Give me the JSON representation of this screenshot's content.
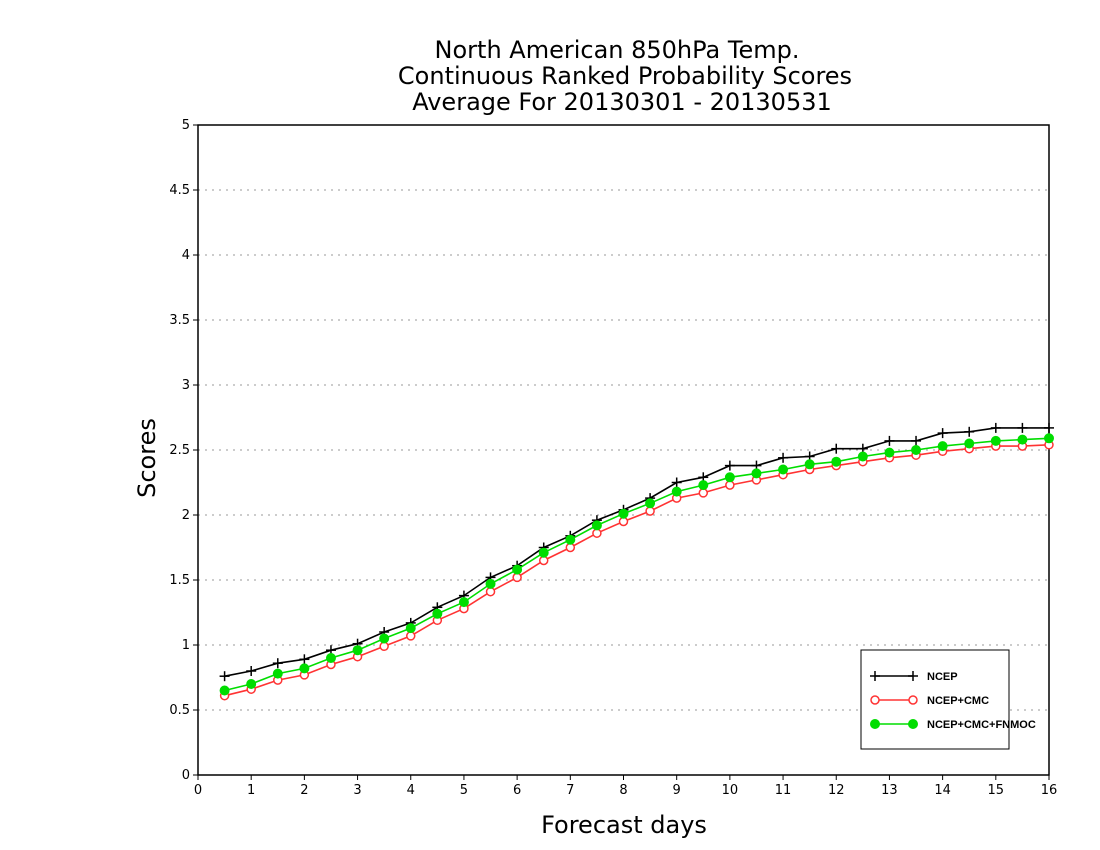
{
  "chart_data": {
    "type": "line",
    "title_lines": [
      "North American 850hPa Temp.",
      "Continuous Ranked Probability Scores",
      "Average For 20130301 - 20130531"
    ],
    "xlabel": "Forecast days",
    "ylabel": "Scores",
    "xlim": [
      0,
      16
    ],
    "ylim": [
      0,
      5
    ],
    "x_ticks": [
      "0",
      "1",
      "2",
      "3",
      "4",
      "5",
      "6",
      "7",
      "8",
      "9",
      "10",
      "11",
      "12",
      "13",
      "14",
      "15",
      "16"
    ],
    "y_ticks": [
      "0",
      "0.5",
      "1",
      "1.5",
      "2",
      "2.5",
      "3",
      "3.5",
      "4",
      "4.5",
      "5"
    ],
    "grid": "horizontal dotted",
    "legend_position": "bottom-right",
    "x": [
      0.5,
      1,
      1.5,
      2,
      2.5,
      3,
      3.5,
      4,
      4.5,
      5,
      5.5,
      6,
      6.5,
      7,
      7.5,
      8,
      8.5,
      9,
      9.5,
      10,
      10.5,
      11,
      11.5,
      12,
      12.5,
      13,
      13.5,
      14,
      14.5,
      15,
      15.5,
      16
    ],
    "series": [
      {
        "name": "NCEP",
        "color": "#000000",
        "marker": "plus",
        "values": [
          0.76,
          0.8,
          0.86,
          0.89,
          0.96,
          1.01,
          1.1,
          1.17,
          1.29,
          1.38,
          1.52,
          1.61,
          1.75,
          1.84,
          1.96,
          2.04,
          2.13,
          2.25,
          2.29,
          2.38,
          2.38,
          2.44,
          2.45,
          2.51,
          2.51,
          2.57,
          2.57,
          2.63,
          2.64,
          2.67,
          2.67,
          2.67
        ]
      },
      {
        "name": "NCEP+CMC",
        "color": "#ff3333",
        "marker": "open-circle",
        "values": [
          0.61,
          0.66,
          0.73,
          0.77,
          0.85,
          0.91,
          0.99,
          1.07,
          1.19,
          1.28,
          1.41,
          1.52,
          1.65,
          1.75,
          1.86,
          1.95,
          2.03,
          2.13,
          2.17,
          2.23,
          2.27,
          2.31,
          2.35,
          2.38,
          2.41,
          2.44,
          2.46,
          2.49,
          2.51,
          2.53,
          2.53,
          2.54
        ]
      },
      {
        "name": "NCEP+CMC+FNMOC",
        "color": "#00dd00",
        "marker": "filled-circle",
        "values": [
          0.65,
          0.7,
          0.78,
          0.82,
          0.9,
          0.96,
          1.05,
          1.13,
          1.24,
          1.33,
          1.47,
          1.58,
          1.71,
          1.81,
          1.92,
          2.01,
          2.09,
          2.18,
          2.23,
          2.29,
          2.32,
          2.35,
          2.39,
          2.41,
          2.45,
          2.48,
          2.5,
          2.53,
          2.55,
          2.57,
          2.58,
          2.59
        ]
      }
    ]
  }
}
